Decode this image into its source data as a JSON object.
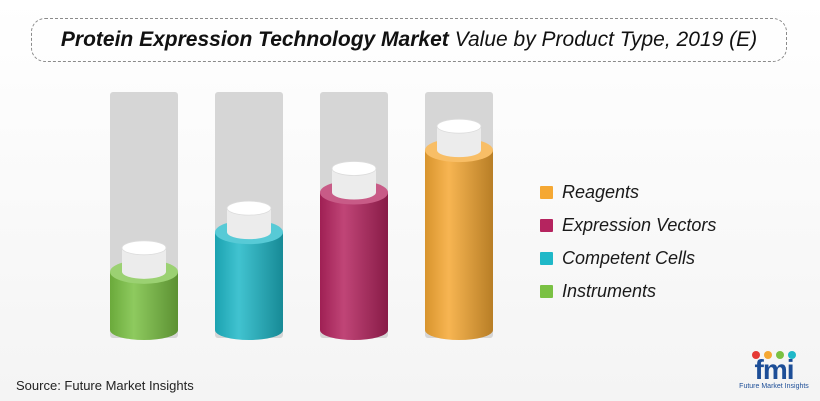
{
  "title": {
    "bold": "Protein Expression Technology Market",
    "rest": "Value by Product Type, 2019 (E)"
  },
  "chart_data": {
    "type": "bar",
    "categories": [
      "Instruments",
      "Competent Cells",
      "Expression Vectors",
      "Reagents"
    ],
    "values": [
      22,
      37,
      52,
      68
    ],
    "ylim": [
      0,
      90
    ],
    "grid": false,
    "legend_position": "right",
    "series_colors": [
      "#7ac143",
      "#1fb8c8",
      "#b5245f",
      "#f5a833"
    ],
    "legend": [
      {
        "label": "Reagents",
        "color": "#f5a833"
      },
      {
        "label": "Expression Vectors",
        "color": "#b5245f"
      },
      {
        "label": "Competent Cells",
        "color": "#1fb8c8"
      },
      {
        "label": "Instruments",
        "color": "#7ac143"
      }
    ]
  },
  "source": "Source: Future Market Insights",
  "logo": {
    "text": "fmi",
    "subtitle": "Future Market Insights",
    "dot_colors": [
      "#e53935",
      "#f5a833",
      "#7ac143",
      "#1fb8c8"
    ]
  }
}
